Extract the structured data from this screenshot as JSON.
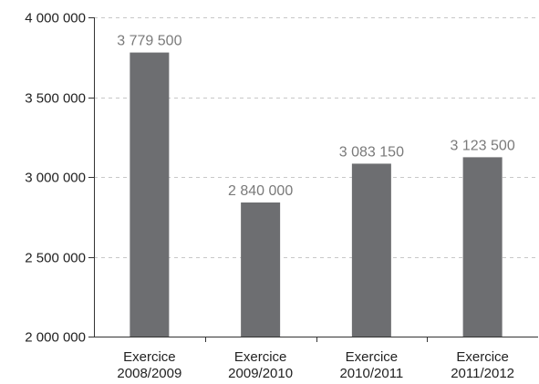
{
  "chart_data": {
    "type": "bar",
    "categories": [
      [
        "Exercice",
        "2008/2009"
      ],
      [
        "Exercice",
        "2009/2010"
      ],
      [
        "Exercice",
        "2010/2011"
      ],
      [
        "Exercice",
        "2011/2012"
      ]
    ],
    "values": [
      3779500,
      2840000,
      3083150,
      3123500
    ],
    "value_labels": [
      "3 779 500",
      "2 840 000",
      "3 083 150",
      "3 123 500"
    ],
    "ylim": [
      2000000,
      4000000
    ],
    "yticks": [
      2000000,
      2500000,
      3000000,
      3500000,
      4000000
    ],
    "ytick_labels": [
      "2 000 000",
      "2 500 000",
      "3 000 000",
      "3 500 000",
      "4 000 000"
    ],
    "title": "",
    "xlabel": "",
    "ylabel": "",
    "grid": true,
    "colors": {
      "bar": "#6d6e71",
      "grid": "#c8c8c8",
      "axis": "#333333",
      "data_label": "#7a7a7a"
    }
  }
}
